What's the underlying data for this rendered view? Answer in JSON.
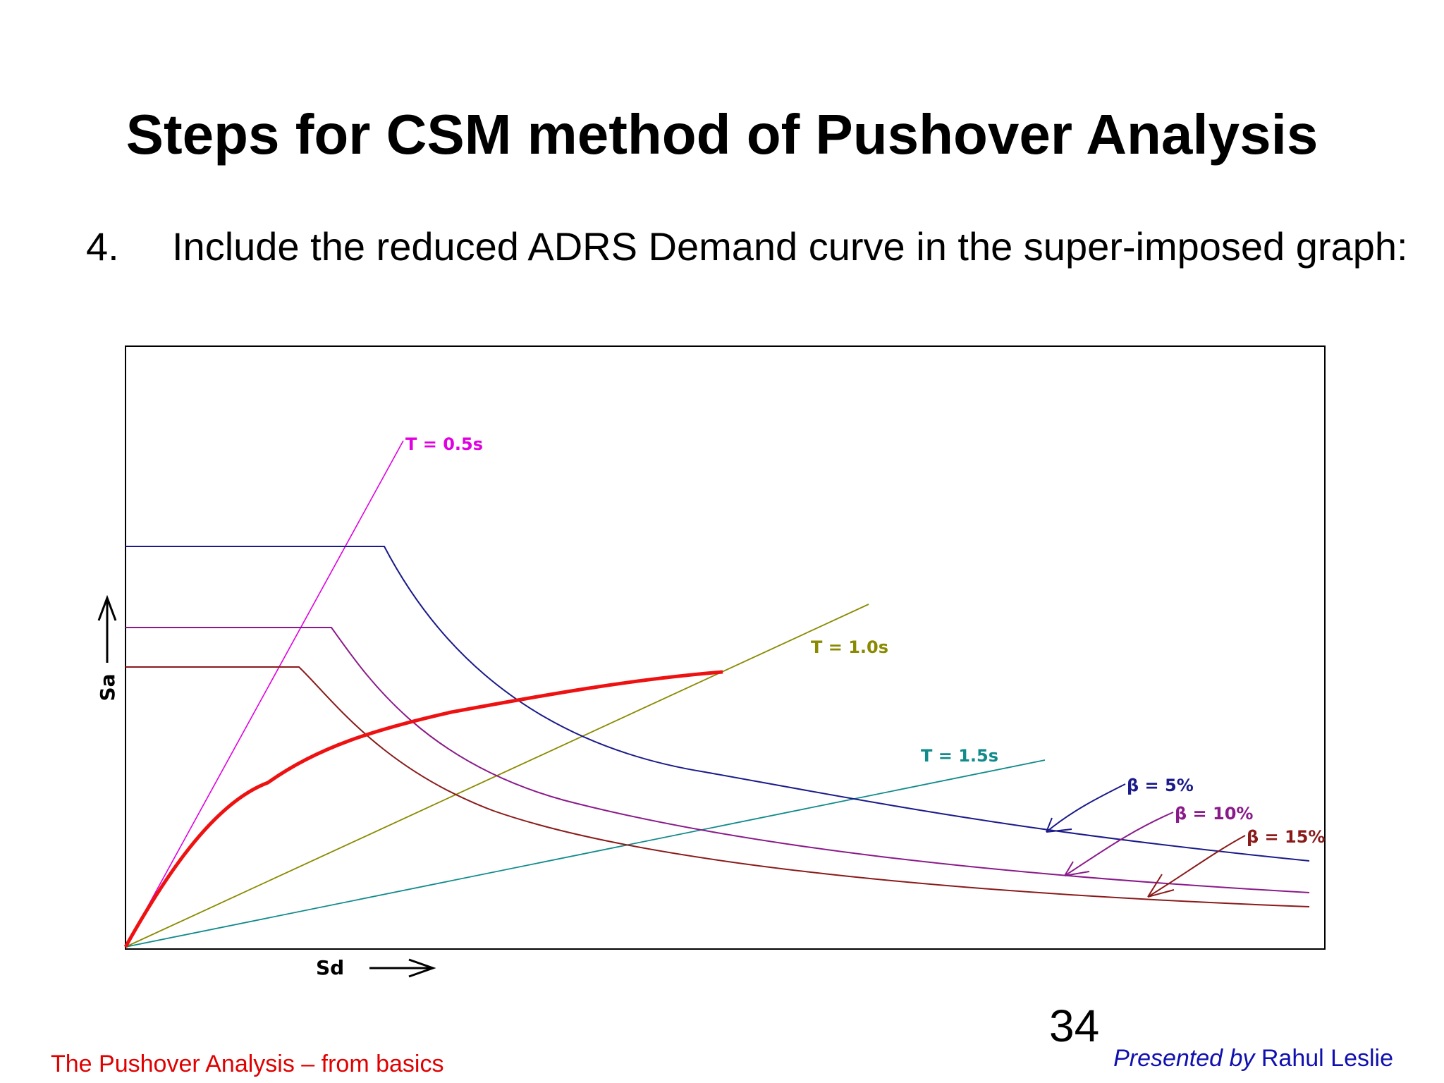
{
  "title": "Steps for CSM method of Pushover Analysis",
  "step": {
    "number": "4.",
    "text": "Include the reduced ADRS Demand curve in the super-imposed graph:"
  },
  "figure": {
    "y_axis_label": "Sa",
    "x_axis_label": "Sd",
    "period_lines": [
      {
        "label": "T = 0.5s",
        "color": "#e000e0"
      },
      {
        "label": "T = 1.0s",
        "color": "#8a8a00"
      },
      {
        "label": "T = 1.5s",
        "color": "#108a8a"
      }
    ],
    "demand_curves": [
      {
        "label": "β = 5%",
        "color": "#1a1a8a"
      },
      {
        "label": "β = 10%",
        "color": "#8a1a8a"
      },
      {
        "label": "β = 15%",
        "color": "#8a1a1a"
      }
    ],
    "capacity_curve_color": "#ee1111"
  },
  "page_number": "34",
  "footer": {
    "left": "The Pushover Analysis – from basics",
    "right_italic": "Presented by",
    "right_name": "Rahul Leslie"
  }
}
